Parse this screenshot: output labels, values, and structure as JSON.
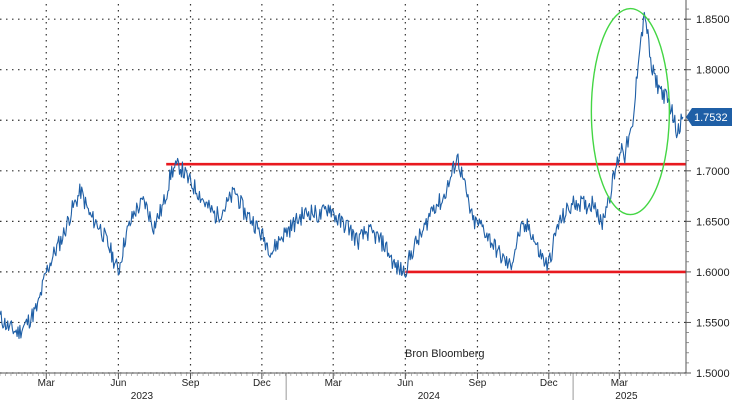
{
  "chart_data": {
    "type": "line",
    "title": "",
    "xlabel": "",
    "ylabel": "",
    "ylim": [
      1.5,
      1.865
    ],
    "yticks": [
      1.5,
      1.55,
      1.6,
      1.65,
      1.7,
      1.75,
      1.8,
      1.85
    ],
    "ytick_labels": [
      "1.5000",
      "1.5500",
      "1.6000",
      "1.6500",
      "1.7000",
      "1.7500",
      "1.8000",
      "1.8500"
    ],
    "xlim": [
      "2023-01-01",
      "2025-05-25"
    ],
    "x_ticks": [
      {
        "date": "2023-03-01",
        "label": "Mar"
      },
      {
        "date": "2023-06-01",
        "label": "Jun"
      },
      {
        "date": "2023-09-01",
        "label": "Sep"
      },
      {
        "date": "2023-12-01",
        "label": "Dec"
      },
      {
        "date": "2024-03-01",
        "label": "Mar"
      },
      {
        "date": "2024-06-01",
        "label": "Jun"
      },
      {
        "date": "2024-09-01",
        "label": "Sep"
      },
      {
        "date": "2024-12-01",
        "label": "Dec"
      },
      {
        "date": "2025-03-01",
        "label": "Mar"
      }
    ],
    "years": [
      {
        "label": "2023",
        "center": "2023-07-01"
      },
      {
        "label": "2024",
        "center": "2024-07-01"
      },
      {
        "label": "2025",
        "center": "2025-03-10"
      }
    ],
    "year_dividers": [
      "2024-01-01",
      "2025-01-01"
    ],
    "grid": true,
    "line_color": "#1f5fa6",
    "series": [
      {
        "x": [
          "2023-01-01",
          "2023-01-12",
          "2023-01-24",
          "2023-02-05",
          "2023-02-18",
          "2023-03-01",
          "2023-03-12",
          "2023-03-22",
          "2023-04-02",
          "2023-04-14",
          "2023-04-26",
          "2023-05-08",
          "2023-05-20",
          "2023-06-01",
          "2023-06-10",
          "2023-06-22",
          "2023-07-04",
          "2023-07-16",
          "2023-07-28",
          "2023-08-08",
          "2023-08-18",
          "2023-08-30",
          "2023-09-10",
          "2023-09-22",
          "2023-10-04",
          "2023-10-16",
          "2023-10-28",
          "2023-11-08",
          "2023-11-20",
          "2023-12-02",
          "2023-12-14",
          "2023-12-26",
          "2024-01-08",
          "2024-01-20",
          "2024-02-01",
          "2024-02-13",
          "2024-02-25",
          "2024-03-08",
          "2024-03-20",
          "2024-04-01",
          "2024-04-13",
          "2024-04-25",
          "2024-05-07",
          "2024-05-19",
          "2024-05-31",
          "2024-06-12",
          "2024-06-24",
          "2024-07-06",
          "2024-07-18",
          "2024-07-30",
          "2024-08-06",
          "2024-08-14",
          "2024-08-26",
          "2024-09-07",
          "2024-09-19",
          "2024-10-01",
          "2024-10-13",
          "2024-10-25",
          "2024-11-06",
          "2024-11-18",
          "2024-11-30",
          "2024-12-12",
          "2024-12-24",
          "2025-01-05",
          "2025-01-17",
          "2025-01-29",
          "2025-02-06",
          "2025-02-12",
          "2025-02-18",
          "2025-02-24",
          "2025-03-02",
          "2025-03-05",
          "2025-03-08",
          "2025-03-12",
          "2025-03-18",
          "2025-03-26",
          "2025-04-03",
          "2025-04-11",
          "2025-04-19",
          "2025-04-27",
          "2025-05-05",
          "2025-05-13",
          "2025-05-21"
        ],
        "y": [
          1.555,
          1.545,
          1.54,
          1.55,
          1.565,
          1.6,
          1.62,
          1.635,
          1.66,
          1.68,
          1.655,
          1.645,
          1.625,
          1.6,
          1.635,
          1.66,
          1.67,
          1.645,
          1.665,
          1.7,
          1.705,
          1.69,
          1.68,
          1.665,
          1.655,
          1.665,
          1.68,
          1.66,
          1.65,
          1.635,
          1.62,
          1.635,
          1.645,
          1.655,
          1.66,
          1.655,
          1.665,
          1.65,
          1.645,
          1.63,
          1.64,
          1.635,
          1.625,
          1.605,
          1.6,
          1.625,
          1.64,
          1.665,
          1.67,
          1.695,
          1.715,
          1.69,
          1.65,
          1.645,
          1.63,
          1.615,
          1.605,
          1.64,
          1.645,
          1.62,
          1.605,
          1.645,
          1.66,
          1.67,
          1.665,
          1.67,
          1.645,
          1.665,
          1.68,
          1.7,
          1.72,
          1.725,
          1.715,
          1.73,
          1.74,
          1.82,
          1.855,
          1.8,
          1.785,
          1.775,
          1.765,
          1.74,
          1.7532
        ]
      }
    ],
    "last_value": 1.7532,
    "last_value_label": "1.7532",
    "hlines": [
      {
        "y": 1.7065,
        "from": "2023-08-01",
        "to": "2025-05-25",
        "color": "#e8191f"
      },
      {
        "y": 1.6,
        "from": "2024-06-01",
        "to": "2025-05-25",
        "color": "#e8191f"
      }
    ],
    "highlight_ellipse": {
      "center_date": "2025-03-01",
      "center_y": 1.7645,
      "color": "#44d644"
    },
    "annotation": "Bron Bloomberg"
  }
}
